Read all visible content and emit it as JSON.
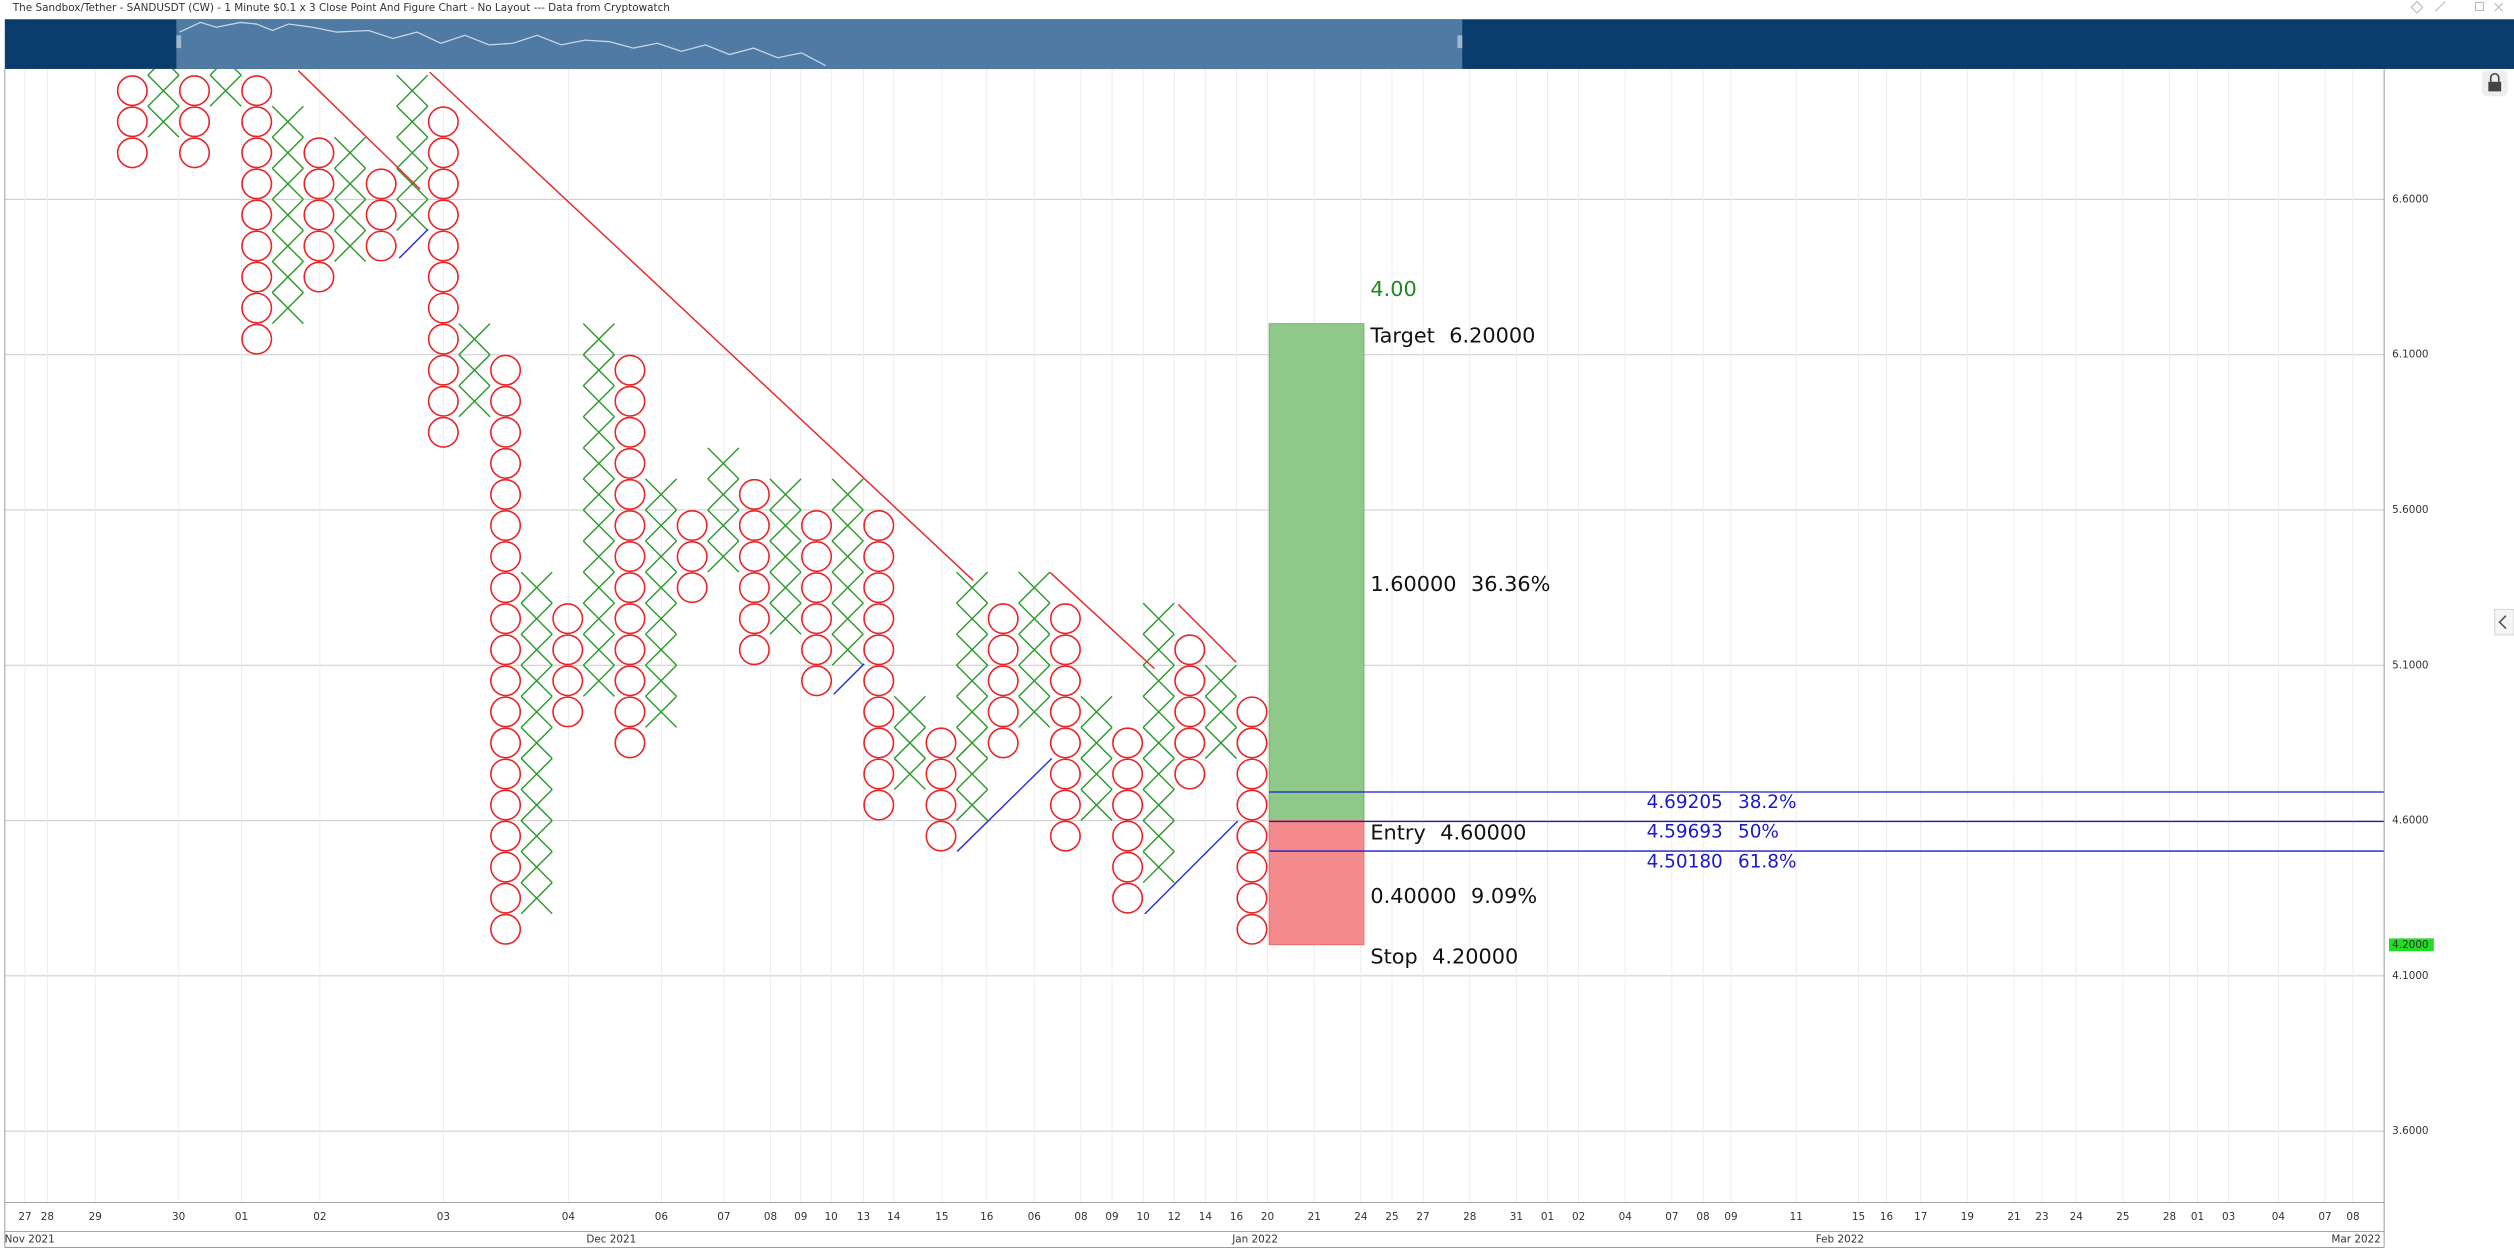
{
  "chart_data": {
    "type": "point_and_figure",
    "title": "The Sandbox/Tether - SANDUSDT (CW) - 1 Minute $0.1 x 3 Close Point And Figure Chart - No Layout --- Data from Cryptowatch",
    "box_size": 0.1,
    "x_color": "#2e9a2e",
    "o_color": "#e8262a",
    "grid": true,
    "ylim": [
      3.37,
      7.02
    ],
    "yticks": [
      {
        "value": 6.6,
        "label": "6.6000"
      },
      {
        "value": 6.1,
        "label": "6.1000"
      },
      {
        "value": 5.6,
        "label": "5.6000"
      },
      {
        "value": 5.1,
        "label": "5.1000"
      },
      {
        "value": 4.6,
        "label": "4.6000"
      },
      {
        "value": 4.1,
        "label": "4.1000"
      },
      {
        "value": 3.6,
        "label": "3.6000"
      }
    ],
    "xlim": [
      -4.1,
      72.4
    ],
    "xticks": [
      {
        "value": -3.45,
        "label": "27"
      },
      {
        "value": -2.73,
        "label": "28"
      },
      {
        "value": -1.19,
        "label": "29"
      },
      {
        "value": 1.49,
        "label": "30"
      },
      {
        "value": 3.51,
        "label": "01"
      },
      {
        "value": 6.03,
        "label": "02"
      },
      {
        "value": 10.0,
        "label": "03"
      },
      {
        "value": 14.02,
        "label": "04"
      },
      {
        "value": 17.01,
        "label": "06"
      },
      {
        "value": 19.02,
        "label": "07"
      },
      {
        "value": 20.52,
        "label": "08"
      },
      {
        "value": 21.49,
        "label": "09"
      },
      {
        "value": 22.47,
        "label": "10"
      },
      {
        "value": 23.51,
        "label": "13"
      },
      {
        "value": 24.48,
        "label": "14"
      },
      {
        "value": 26.03,
        "label": "15"
      },
      {
        "value": 27.47,
        "label": "16"
      },
      {
        "value": 29.0,
        "label": "06"
      },
      {
        "value": 30.5,
        "label": "08"
      },
      {
        "value": 31.5,
        "label": "09"
      },
      {
        "value": 32.5,
        "label": "10"
      },
      {
        "value": 33.5,
        "label": "12"
      },
      {
        "value": 34.5,
        "label": "14"
      },
      {
        "value": 35.5,
        "label": "16"
      },
      {
        "value": 36.5,
        "label": "20"
      },
      {
        "value": 38.0,
        "label": "21"
      },
      {
        "value": 39.5,
        "label": "24"
      },
      {
        "value": 40.5,
        "label": "25"
      },
      {
        "value": 41.5,
        "label": "27"
      },
      {
        "value": 43.0,
        "label": "28"
      },
      {
        "value": 44.5,
        "label": "31"
      },
      {
        "value": 45.5,
        "label": "01"
      },
      {
        "value": 46.5,
        "label": "02"
      },
      {
        "value": 48.0,
        "label": "04"
      },
      {
        "value": 49.5,
        "label": "07"
      },
      {
        "value": 50.5,
        "label": "08"
      },
      {
        "value": 51.4,
        "label": "09"
      },
      {
        "value": 53.5,
        "label": "11"
      },
      {
        "value": 55.5,
        "label": "15"
      },
      {
        "value": 56.4,
        "label": "16"
      },
      {
        "value": 57.5,
        "label": "17"
      },
      {
        "value": 59.0,
        "label": "19"
      },
      {
        "value": 60.5,
        "label": "21"
      },
      {
        "value": 61.4,
        "label": "23"
      },
      {
        "value": 62.5,
        "label": "24"
      },
      {
        "value": 64.0,
        "label": "25"
      },
      {
        "value": 65.5,
        "label": "28"
      },
      {
        "value": 66.4,
        "label": "01"
      },
      {
        "value": 67.4,
        "label": "03"
      },
      {
        "value": 69.0,
        "label": "04"
      },
      {
        "value": 70.5,
        "label": "07"
      },
      {
        "value": 71.4,
        "label": "08"
      }
    ],
    "month_ticks": [
      {
        "value": -3.3,
        "label": "Nov 2021"
      },
      {
        "value": 15.4,
        "label": "Dec 2021"
      },
      {
        "value": 36.1,
        "label": "Jan 2022"
      },
      {
        "value": 54.9,
        "label": "Feb 2022"
      },
      {
        "value": 71.5,
        "label": "Mar 2022"
      }
    ],
    "columns": [
      {
        "kind": "O",
        "high": 6.9,
        "low": 6.7
      },
      {
        "kind": "X",
        "high": 7.0,
        "low": 6.8
      },
      {
        "kind": "O",
        "high": 6.9,
        "low": 6.7
      },
      {
        "kind": "X",
        "high": 7.0,
        "low": 6.9
      },
      {
        "kind": "O",
        "high": 6.9,
        "low": 6.1
      },
      {
        "kind": "X",
        "high": 6.8,
        "low": 6.2
      },
      {
        "kind": "O",
        "high": 6.7,
        "low": 6.3
      },
      {
        "kind": "X",
        "high": 6.7,
        "low": 6.4
      },
      {
        "kind": "O",
        "high": 6.6,
        "low": 6.4
      },
      {
        "kind": "X",
        "high": 6.9,
        "low": 6.5
      },
      {
        "kind": "O",
        "high": 6.8,
        "low": 5.8
      },
      {
        "kind": "X",
        "high": 6.1,
        "low": 5.9
      },
      {
        "kind": "O",
        "high": 6.0,
        "low": 4.2
      },
      {
        "kind": "X",
        "high": 5.3,
        "low": 4.3
      },
      {
        "kind": "O",
        "high": 5.2,
        "low": 4.9
      },
      {
        "kind": "X",
        "high": 6.1,
        "low": 5.0
      },
      {
        "kind": "O",
        "high": 6.0,
        "low": 4.8
      },
      {
        "kind": "X",
        "high": 5.6,
        "low": 4.9
      },
      {
        "kind": "O",
        "high": 5.5,
        "low": 5.3
      },
      {
        "kind": "X",
        "high": 5.7,
        "low": 5.4
      },
      {
        "kind": "O",
        "high": 5.6,
        "low": 5.1
      },
      {
        "kind": "X",
        "high": 5.6,
        "low": 5.2
      },
      {
        "kind": "O",
        "high": 5.5,
        "low": 5.0
      },
      {
        "kind": "X",
        "high": 5.6,
        "low": 5.1
      },
      {
        "kind": "O",
        "high": 5.5,
        "low": 4.6
      },
      {
        "kind": "X",
        "high": 4.9,
        "low": 4.7
      },
      {
        "kind": "O",
        "high": 4.8,
        "low": 4.5
      },
      {
        "kind": "X",
        "high": 5.3,
        "low": 4.6
      },
      {
        "kind": "O",
        "high": 5.2,
        "low": 4.8
      },
      {
        "kind": "X",
        "high": 5.3,
        "low": 4.9
      },
      {
        "kind": "O",
        "high": 5.2,
        "low": 4.5
      },
      {
        "kind": "X",
        "high": 4.9,
        "low": 4.6
      },
      {
        "kind": "O",
        "high": 4.8,
        "low": 4.3
      },
      {
        "kind": "X",
        "high": 5.2,
        "low": 4.4
      },
      {
        "kind": "O",
        "high": 5.1,
        "low": 4.7
      },
      {
        "kind": "X",
        "high": 5.0,
        "low": 4.8
      },
      {
        "kind": "O",
        "high": 4.9,
        "low": 4.2
      }
    ],
    "risk_reward": {
      "ratio": "4.00",
      "target": {
        "name": "Target",
        "value": 6.2,
        "label": "6.20000"
      },
      "entry": {
        "name": "Entry",
        "value": 4.6,
        "label": "4.60000"
      },
      "stop": {
        "name": "Stop",
        "value": 4.2,
        "label": "4.20000"
      },
      "reward": {
        "value": 1.6,
        "label": "1.60000",
        "percent": "36.36%"
      },
      "risk": {
        "value": 0.4,
        "label": "0.40000",
        "percent": "9.09%"
      },
      "reward_color": "#8fc98a",
      "risk_color": "#f58a8c"
    },
    "fib_levels": [
      {
        "value": 4.69205,
        "label": "4.69205",
        "ratio": "38.2%"
      },
      {
        "value": 4.59693,
        "label": "4.59693",
        "ratio": "50%"
      },
      {
        "value": 4.5018,
        "label": "4.50180",
        "ratio": "61.8%"
      }
    ],
    "fib_color": "#1a1acc",
    "last_price": {
      "value": 4.2,
      "label": "4.2000",
      "color": "#22dd22"
    }
  }
}
